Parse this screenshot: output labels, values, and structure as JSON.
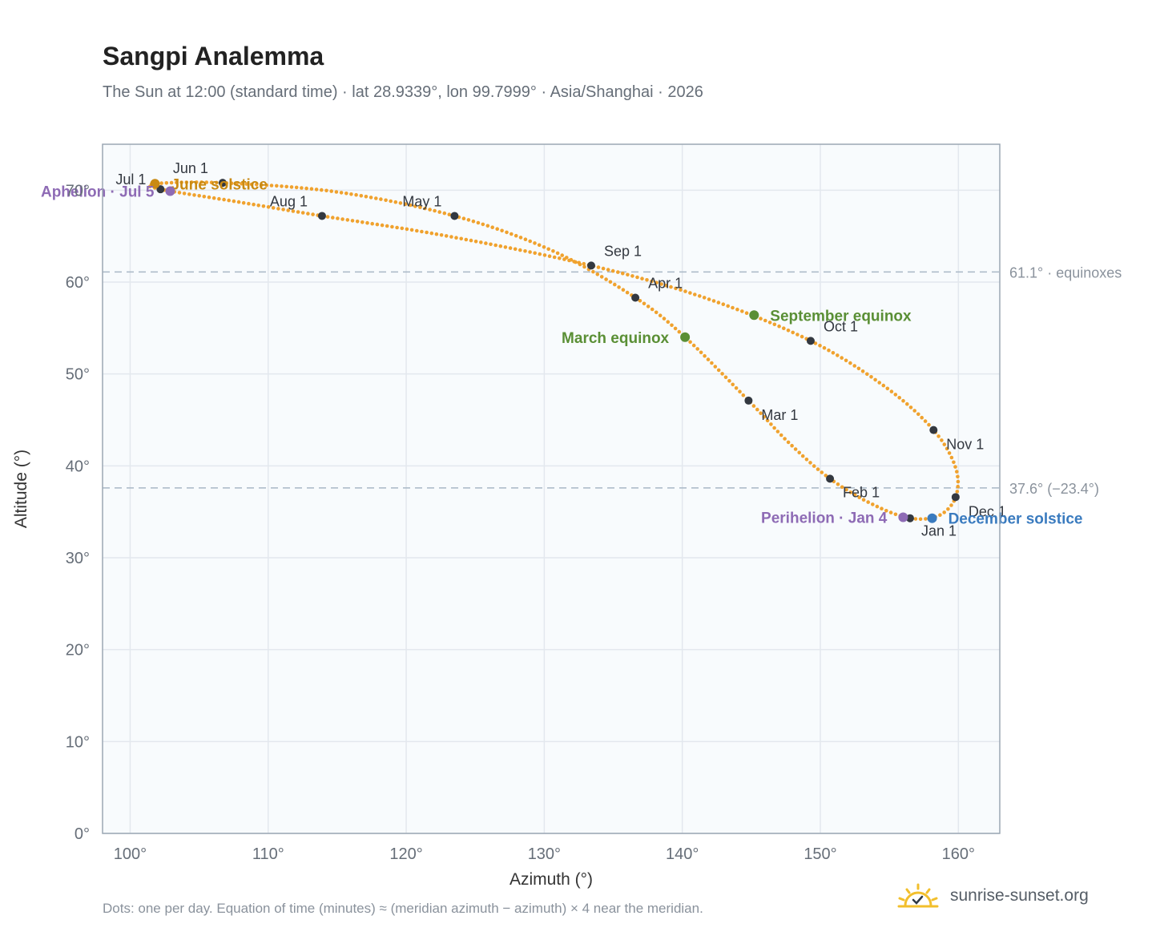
{
  "header": {
    "title": "Sangpi Analemma",
    "subtitle": "The Sun at 12:00 (standard time) · lat 28.9339°, lon 99.7999° · Asia/Shanghai · 2026"
  },
  "footer": {
    "note": "Dots: one per day. Equation of time (minutes) ≈ (meridian azimuth − azimuth) × 4 near the meridian.",
    "brand": "sunrise-sunset.org"
  },
  "colors": {
    "path": "#f0a22e",
    "month_dot": "#333840",
    "equinox": "#5a8f35",
    "june_solstice": "#c98a12",
    "december_solstice": "#3a7bbf",
    "apsis": "#8e6bb5",
    "reference_line": "#a9b8c6",
    "plot_bg": "#f8fbfd",
    "grid": "#e3e8ee"
  },
  "chart_data": {
    "type": "scatter",
    "xlabel": "Azimuth (°)",
    "ylabel": "Altitude (°)",
    "xlim": [
      98,
      163
    ],
    "ylim": [
      0,
      75
    ],
    "xticks": [
      100,
      110,
      120,
      130,
      140,
      150,
      160
    ],
    "xtick_labels": [
      "100°",
      "110°",
      "120°",
      "130°",
      "140°",
      "150°",
      "160°"
    ],
    "yticks": [
      0,
      10,
      20,
      30,
      40,
      50,
      60,
      70
    ],
    "ytick_labels": [
      "0°",
      "10°",
      "20°",
      "30°",
      "40°",
      "50°",
      "60°",
      "70°"
    ],
    "grid": true,
    "reference_lines": [
      {
        "y": 61.1,
        "label": "61.1° · equinoxes"
      },
      {
        "y": 37.6,
        "label": "37.6° (−23.4°)"
      }
    ],
    "months": [
      {
        "label": "Jan 1",
        "az": 156.5,
        "alt": 34.3
      },
      {
        "label": "Feb 1",
        "az": 150.7,
        "alt": 38.6
      },
      {
        "label": "Mar 1",
        "az": 144.8,
        "alt": 47.1
      },
      {
        "label": "Apr 1",
        "az": 136.6,
        "alt": 58.3
      },
      {
        "label": "May 1",
        "az": 123.5,
        "alt": 67.2
      },
      {
        "label": "Jun 1",
        "az": 106.7,
        "alt": 70.8
      },
      {
        "label": "Jul 1",
        "az": 102.2,
        "alt": 70.1
      },
      {
        "label": "Aug 1",
        "az": 113.9,
        "alt": 67.2
      },
      {
        "label": "Sep 1",
        "az": 133.4,
        "alt": 61.8
      },
      {
        "label": "Oct 1",
        "az": 149.3,
        "alt": 53.6
      },
      {
        "label": "Nov 1",
        "az": 158.2,
        "alt": 43.9
      },
      {
        "label": "Dec 1",
        "az": 159.8,
        "alt": 36.6
      }
    ],
    "events": [
      {
        "label": "March equinox",
        "az": 140.2,
        "alt": 54.0,
        "color_key": "equinox",
        "label_side": "left"
      },
      {
        "label": "September equinox",
        "az": 145.2,
        "alt": 56.4,
        "color_key": "equinox",
        "label_side": "right"
      },
      {
        "label": "June solstice",
        "az": 101.8,
        "alt": 70.7,
        "color_key": "june_solstice",
        "label_side": "right"
      },
      {
        "label": "December solstice",
        "az": 158.1,
        "alt": 34.3,
        "color_key": "december_solstice",
        "label_side": "right"
      },
      {
        "label": "Perihelion · Jan 4",
        "az": 156.0,
        "alt": 34.4,
        "color_key": "apsis",
        "label_side": "left"
      },
      {
        "label": "Aphelion · Jul 5",
        "az": 102.9,
        "alt": 69.9,
        "color_key": "apsis",
        "label_side": "left"
      }
    ],
    "path_control_points": [
      {
        "az": 156.5,
        "alt": 34.3
      },
      {
        "az": 153.8,
        "alt": 35.8
      },
      {
        "az": 150.7,
        "alt": 38.6
      },
      {
        "az": 147.8,
        "alt": 42.4
      },
      {
        "az": 144.8,
        "alt": 47.1
      },
      {
        "az": 140.2,
        "alt": 54.0
      },
      {
        "az": 136.6,
        "alt": 58.3
      },
      {
        "az": 130.6,
        "alt": 63.4
      },
      {
        "az": 123.5,
        "alt": 67.2
      },
      {
        "az": 115.0,
        "alt": 69.8
      },
      {
        "az": 106.7,
        "alt": 70.8
      },
      {
        "az": 101.8,
        "alt": 70.7
      },
      {
        "az": 102.2,
        "alt": 70.1
      },
      {
        "az": 107.5,
        "alt": 68.8
      },
      {
        "az": 113.9,
        "alt": 67.2
      },
      {
        "az": 123.0,
        "alt": 65.0
      },
      {
        "az": 133.4,
        "alt": 61.8
      },
      {
        "az": 141.8,
        "alt": 58.2
      },
      {
        "az": 149.3,
        "alt": 53.6
      },
      {
        "az": 154.7,
        "alt": 48.6
      },
      {
        "az": 158.2,
        "alt": 43.9
      },
      {
        "az": 159.8,
        "alt": 39.8
      },
      {
        "az": 159.8,
        "alt": 36.6
      },
      {
        "az": 158.6,
        "alt": 34.6
      },
      {
        "az": 156.5,
        "alt": 34.3
      }
    ]
  }
}
